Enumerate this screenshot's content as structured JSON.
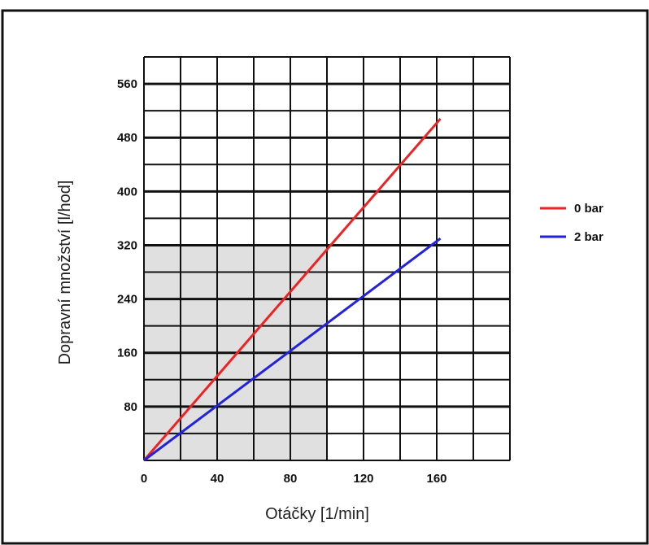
{
  "chart_data": {
    "type": "line",
    "title": "",
    "xlabel": "Otáčky [1/min]",
    "ylabel": "Dopravní množství [l/hod]",
    "xlim": [
      0,
      200
    ],
    "ylim": [
      0,
      600
    ],
    "xticks": [
      0,
      40,
      80,
      120,
      160
    ],
    "xtick_labels": [
      "0",
      "40",
      "80",
      "120",
      "160"
    ],
    "yticks": [
      80,
      160,
      240,
      320,
      400,
      480,
      560
    ],
    "ytick_labels": [
      "80",
      "160",
      "240",
      "320",
      "400",
      "480",
      "560"
    ],
    "grid": true,
    "legend_position": "right",
    "shaded_region": {
      "x": [
        0,
        100
      ],
      "y": [
        0,
        320
      ],
      "color": "#e0e0e0"
    },
    "series": [
      {
        "name": "0 bar",
        "color": "#ee2222",
        "x": [
          0,
          162
        ],
        "y": [
          0,
          508
        ]
      },
      {
        "name": "2 bar",
        "color": "#2222dd",
        "x": [
          0,
          162
        ],
        "y": [
          0,
          330
        ]
      }
    ]
  }
}
